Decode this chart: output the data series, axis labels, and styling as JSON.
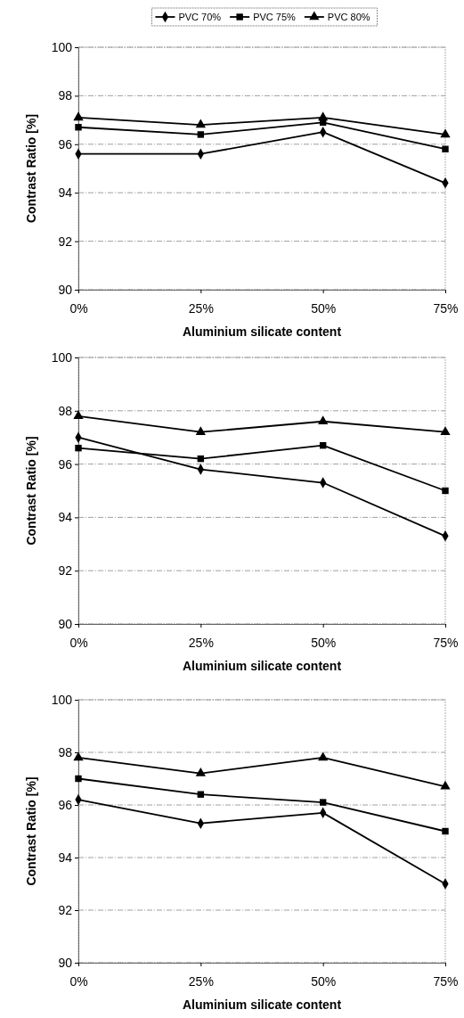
{
  "chart_data": [
    {
      "type": "line",
      "xlabel": "Aluminium silicate content",
      "ylabel": "Contrast Ratio [%]",
      "categories": [
        "0%",
        "25%",
        "50%",
        "75%"
      ],
      "ylim": [
        90,
        100
      ],
      "yticks": [
        90,
        92,
        94,
        96,
        98,
        100
      ],
      "grid": "y",
      "legend": "top",
      "series": [
        {
          "name": "PVC 70%",
          "color": "#000000",
          "marker": "diamond",
          "values": [
            95.6,
            95.6,
            96.5,
            94.4
          ]
        },
        {
          "name": "PVC 75%",
          "color": "#000000",
          "marker": "square",
          "values": [
            96.7,
            96.4,
            96.9,
            95.8
          ]
        },
        {
          "name": "PVC 80%",
          "color": "#000000",
          "marker": "triangle",
          "values": [
            97.1,
            96.8,
            97.1,
            96.4
          ]
        }
      ]
    },
    {
      "type": "line",
      "xlabel": "Aluminium silicate content",
      "ylabel": "Contrast Ratio [%]",
      "categories": [
        "0%",
        "25%",
        "50%",
        "75%"
      ],
      "ylim": [
        90,
        100
      ],
      "yticks": [
        90,
        92,
        94,
        96,
        98,
        100
      ],
      "grid": "y",
      "series": [
        {
          "color": "#000000",
          "marker": "diamond",
          "values": [
            97.0,
            95.8,
            95.3,
            93.3
          ]
        },
        {
          "color": "#000000",
          "marker": "square",
          "values": [
            96.6,
            96.2,
            96.7,
            95.0
          ]
        },
        {
          "color": "#000000",
          "marker": "triangle",
          "values": [
            97.8,
            97.2,
            97.6,
            97.2
          ]
        }
      ]
    },
    {
      "type": "line",
      "xlabel": "Aluminium silicate content",
      "ylabel": "Contrast Ratio [%]",
      "categories": [
        "0%",
        "25%",
        "50%",
        "75%"
      ],
      "ylim": [
        90,
        100
      ],
      "yticks": [
        90,
        92,
        94,
        96,
        98,
        100
      ],
      "grid": "y",
      "series": [
        {
          "color": "#000000",
          "marker": "diamond",
          "values": [
            96.2,
            95.3,
            95.7,
            93.0
          ]
        },
        {
          "color": "#000000",
          "marker": "square",
          "values": [
            97.0,
            96.4,
            96.1,
            95.0
          ]
        },
        {
          "color": "#000000",
          "marker": "triangle",
          "values": [
            97.8,
            97.2,
            97.8,
            96.7
          ]
        }
      ]
    }
  ]
}
